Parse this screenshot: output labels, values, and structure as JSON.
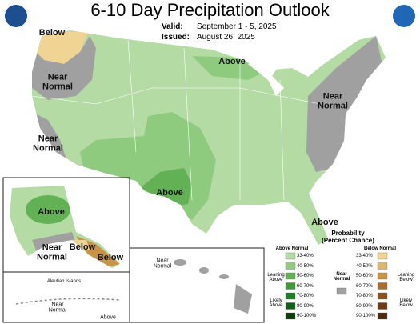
{
  "header": {
    "title": "6-10 Day Precipitation Outlook",
    "valid_label": "Valid:",
    "valid": "September 1 - 5, 2025",
    "issued_label": "Issued:",
    "issued": "August 26, 2025"
  },
  "map_labels": [
    "Below",
    "Near Normal",
    "Above",
    "Near Normal",
    "Near Normal",
    "Above",
    "Above",
    "Above",
    "Near Normal",
    "Below",
    "Below",
    "Aleutian Islands",
    "Near Normal",
    "Above",
    "Near Normal"
  ],
  "legend": {
    "title": "Probability (Percent Chance)",
    "above": {
      "name": "Above Normal",
      "levels": [
        "33-40%",
        "40-50%",
        "50-60%",
        "60-70%",
        "70-80%",
        "80-90%",
        "90-100%"
      ],
      "colors": [
        "#b5dba5",
        "#8fcb7f",
        "#62b255",
        "#3e9a37",
        "#217e24",
        "#105f17",
        "#0b3d0e"
      ]
    },
    "near": {
      "name": "Near Normal",
      "color": "#a0a0a0"
    },
    "below": {
      "name": "Below Normal",
      "levels": [
        "33-40%",
        "40-50%",
        "50-60%",
        "60-70%",
        "70-80%",
        "80-90%",
        "90-100%"
      ],
      "colors": [
        "#f0d493",
        "#dcb66b",
        "#c89548",
        "#a8702e",
        "#8a5420",
        "#6b3c16",
        "#4a2a10"
      ]
    },
    "leaning_above": "Leaning Above",
    "likely_above": "Likely Above",
    "leaning_below": "Leaning Below",
    "likely_below": "Likely Below"
  }
}
